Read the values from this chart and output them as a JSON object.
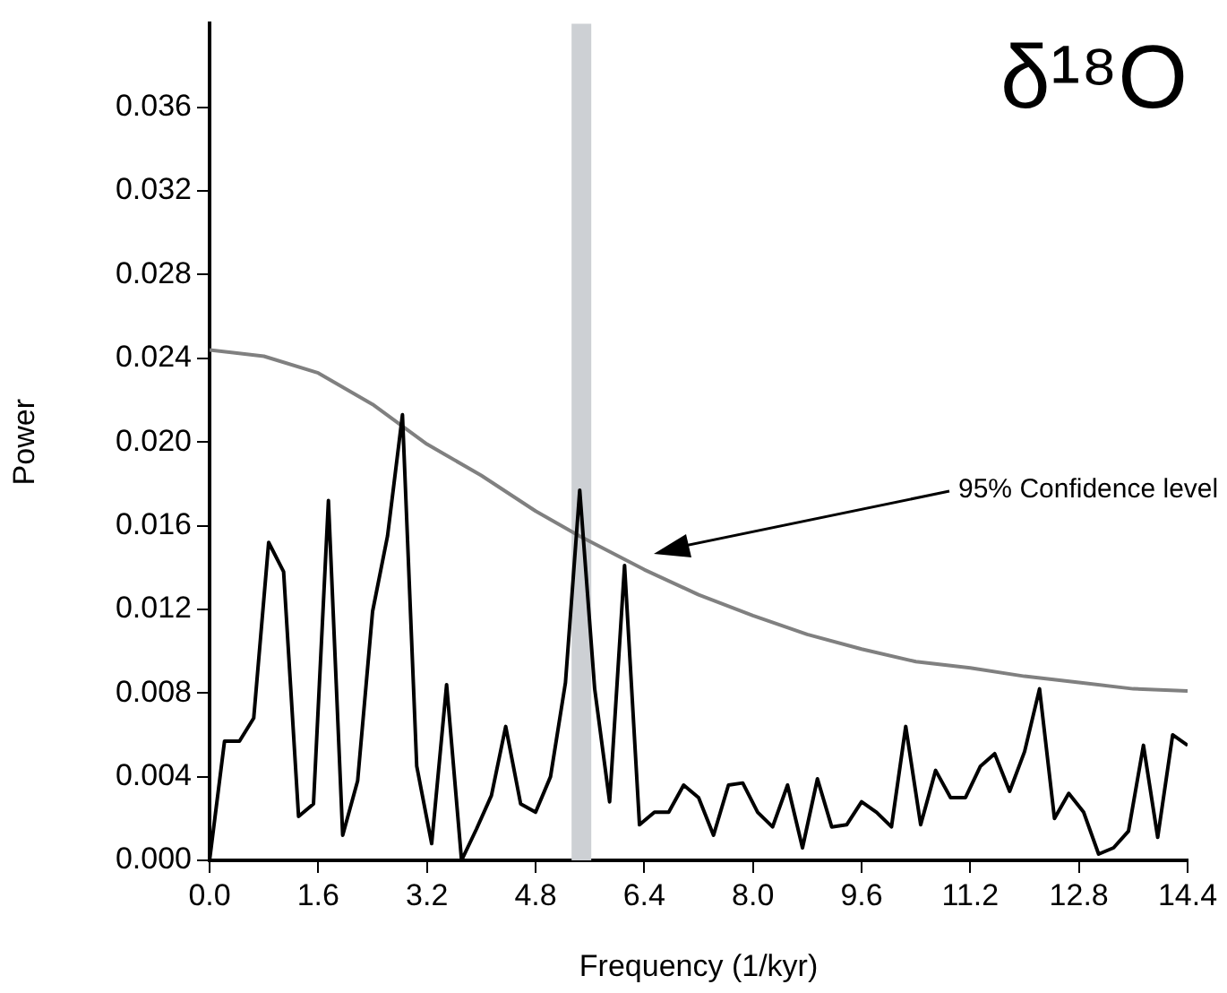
{
  "chart_data": {
    "type": "line",
    "title": "δ¹⁸O",
    "xlabel": "Frequency (1/kyr)",
    "ylabel": "Power",
    "xlim": [
      0,
      14.4
    ],
    "ylim": [
      0,
      0.04
    ],
    "xticks": [
      {
        "value": 0,
        "label": "0.0"
      },
      1.6,
      3.2,
      4.8,
      6.4,
      {
        "value": 8,
        "label": "8.0"
      },
      9.6,
      11.2,
      12.8,
      14.4
    ],
    "yticks": [
      {
        "value": 0,
        "label": "0.000"
      },
      {
        "value": 0.004,
        "label": "0.004"
      },
      {
        "value": 0.008,
        "label": "0.008"
      },
      {
        "value": 0.012,
        "label": "0.012"
      },
      {
        "value": 0.016,
        "label": "0.016"
      },
      {
        "value": 0.02,
        "label": "0.020"
      },
      {
        "value": 0.024,
        "label": "0.024"
      },
      {
        "value": 0.028,
        "label": "0.028"
      },
      {
        "value": 0.032,
        "label": "0.032"
      },
      {
        "value": 0.036,
        "label": "0.036"
      }
    ],
    "grid": false,
    "legend": false,
    "marker": "none",
    "line_style": "solid",
    "series": [
      {
        "color": "#000000",
        "x": [
          0,
          0.22,
          0.44,
          0.65,
          0.87,
          1.09,
          1.31,
          1.53,
          1.75,
          1.96,
          2.18,
          2.4,
          2.62,
          2.84,
          3.05,
          3.27,
          3.49,
          3.71,
          3.93,
          4.15,
          4.36,
          4.58,
          4.8,
          5.02,
          5.24,
          5.45,
          5.67,
          5.89,
          6.11,
          6.33,
          6.55,
          6.76,
          6.98,
          7.2,
          7.42,
          7.64,
          7.85,
          8.07,
          8.29,
          8.51,
          8.73,
          8.95,
          9.16,
          9.38,
          9.6,
          9.82,
          10.04,
          10.25,
          10.47,
          10.69,
          10.91,
          11.13,
          11.35,
          11.56,
          11.78,
          12,
          12.22,
          12.44,
          12.65,
          12.87,
          13.09,
          13.31,
          13.53,
          13.75,
          13.96,
          14.18,
          14.4
        ],
        "values": [
          0,
          0.0057,
          0.0057,
          0.0068,
          0.0152,
          0.0138,
          0.0021,
          0.0027,
          0.0172,
          0.0012,
          0.0038,
          0.0119,
          0.0155,
          0.0213,
          0.0045,
          0.0008,
          0.0084,
          0,
          0.0015,
          0.0031,
          0.0064,
          0.0027,
          0.0023,
          0.004,
          0.0085,
          0.0177,
          0.0082,
          0.0028,
          0.0141,
          0.0017,
          0.0023,
          0.0023,
          0.0036,
          0.003,
          0.0012,
          0.0036,
          0.0037,
          0.0023,
          0.0016,
          0.0036,
          0.0006,
          0.0039,
          0.0016,
          0.0017,
          0.0028,
          0.0023,
          0.0016,
          0.0064,
          0.0017,
          0.0043,
          0.003,
          0.003,
          0.0045,
          0.0051,
          0.0033,
          0.0052,
          0.0082,
          0.002,
          0.0032,
          0.0023,
          0.0003,
          0.0006,
          0.0014,
          0.0055,
          0.0011,
          0.006,
          0.0055
        ]
      },
      {
        "color": "#808080",
        "x": [
          0,
          0.8,
          1.6,
          2.4,
          3.2,
          4,
          4.8,
          5.45,
          6.4,
          7.2,
          8,
          8.8,
          9.6,
          10.4,
          11.2,
          12,
          12.8,
          13.6,
          14.4
        ],
        "values": [
          0.0244,
          0.0241,
          0.0233,
          0.0218,
          0.0199,
          0.0184,
          0.0167,
          0.0155,
          0.0139,
          0.0127,
          0.0117,
          0.0108,
          0.0101,
          0.0095,
          0.0092,
          0.0088,
          0.0085,
          0.0082,
          0.0081
        ]
      }
    ],
    "bands": [
      {
        "axis": "x",
        "from": 5.33,
        "to": 5.62,
        "color": "#cdd0d4"
      }
    ],
    "annotations": [
      "95% Confidence level"
    ]
  }
}
